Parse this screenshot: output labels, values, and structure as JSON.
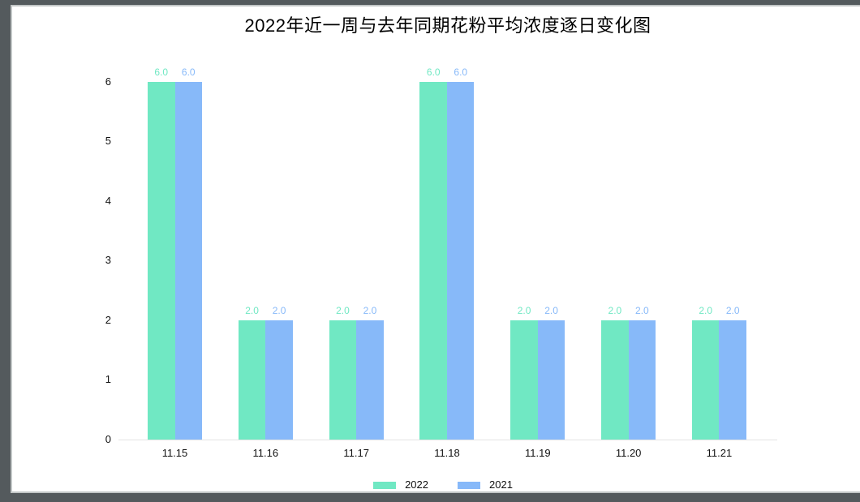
{
  "window": {
    "frame_color": "#545a5d",
    "inner_border_color": "#c2c6c6",
    "background": "#ffffff"
  },
  "chart_data": {
    "type": "bar",
    "title": "2022年近一周与去年同期花粉平均浓度逐日变化图",
    "categories": [
      "11.15",
      "11.16",
      "11.17",
      "11.18",
      "11.19",
      "11.20",
      "11.21"
    ],
    "series": [
      {
        "name": "2022",
        "color": "#70e8c3",
        "values": [
          6.0,
          2.0,
          2.0,
          6.0,
          2.0,
          2.0,
          2.0
        ]
      },
      {
        "name": "2021",
        "color": "#87b9f9",
        "values": [
          6.0,
          2.0,
          2.0,
          6.0,
          2.0,
          2.0,
          2.0
        ]
      }
    ],
    "xlabel": "",
    "ylabel": "",
    "ylim": [
      0,
      6
    ],
    "y_ticks": [
      0,
      1,
      2,
      3,
      4,
      5,
      6
    ],
    "bar_value_labels": [
      "6.0",
      "2.0",
      "2.0",
      "6.0",
      "2.0",
      "2.0",
      "2.0"
    ],
    "value_label_decimals": 1,
    "grid": false,
    "legend_position": "bottom"
  }
}
